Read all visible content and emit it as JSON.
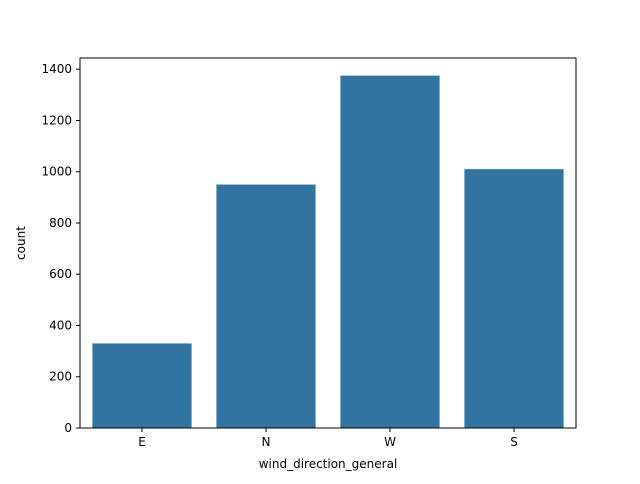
{
  "chart_data": {
    "type": "bar",
    "title": "",
    "xlabel": "wind_direction_general",
    "ylabel": "count",
    "categories": [
      "E",
      "N",
      "W",
      "S"
    ],
    "values": [
      330,
      950,
      1375,
      1010
    ],
    "ylim": [
      0,
      1443.75
    ],
    "yticks": [
      0,
      200,
      400,
      600,
      800,
      1000,
      1200,
      1400
    ],
    "bar_color": "#3274a1",
    "grid": false,
    "legend": "none"
  }
}
